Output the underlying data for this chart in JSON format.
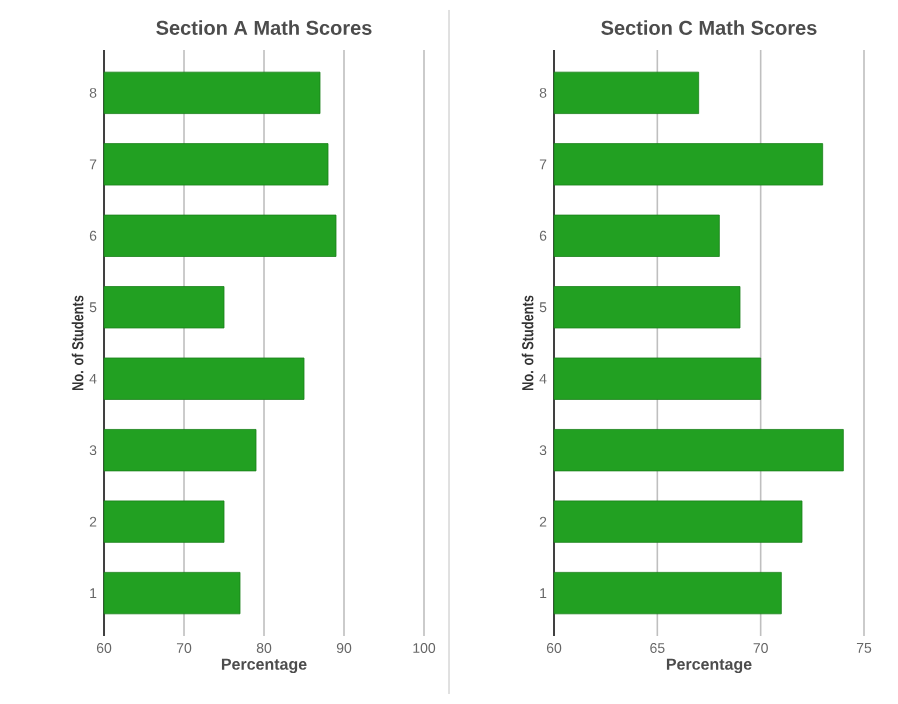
{
  "chart_data": [
    {
      "type": "bar",
      "orientation": "horizontal",
      "title": "Section A Math Scores",
      "xlabel": "Percentage",
      "ylabel": "No. of Students",
      "categories": [
        "8",
        "7",
        "6",
        "5",
        "4",
        "3",
        "2",
        "1"
      ],
      "values": [
        87,
        88,
        89,
        75,
        85,
        79,
        75,
        77
      ],
      "color": "#22a022",
      "xlim": [
        60,
        100
      ],
      "xticks": [
        60,
        70,
        80,
        90,
        100
      ],
      "grid": "x"
    },
    {
      "type": "bar",
      "orientation": "horizontal",
      "title": "Section C Math Scores",
      "xlabel": "Percentage",
      "ylabel": "No. of Students",
      "categories": [
        "8",
        "7",
        "6",
        "5",
        "4",
        "3",
        "2",
        "1"
      ],
      "values": [
        67,
        73,
        68,
        69,
        70,
        74,
        72,
        71
      ],
      "color": "#22a022",
      "xlim": [
        60,
        75
      ],
      "xticks": [
        60,
        65,
        70,
        75
      ],
      "grid": "x"
    }
  ]
}
